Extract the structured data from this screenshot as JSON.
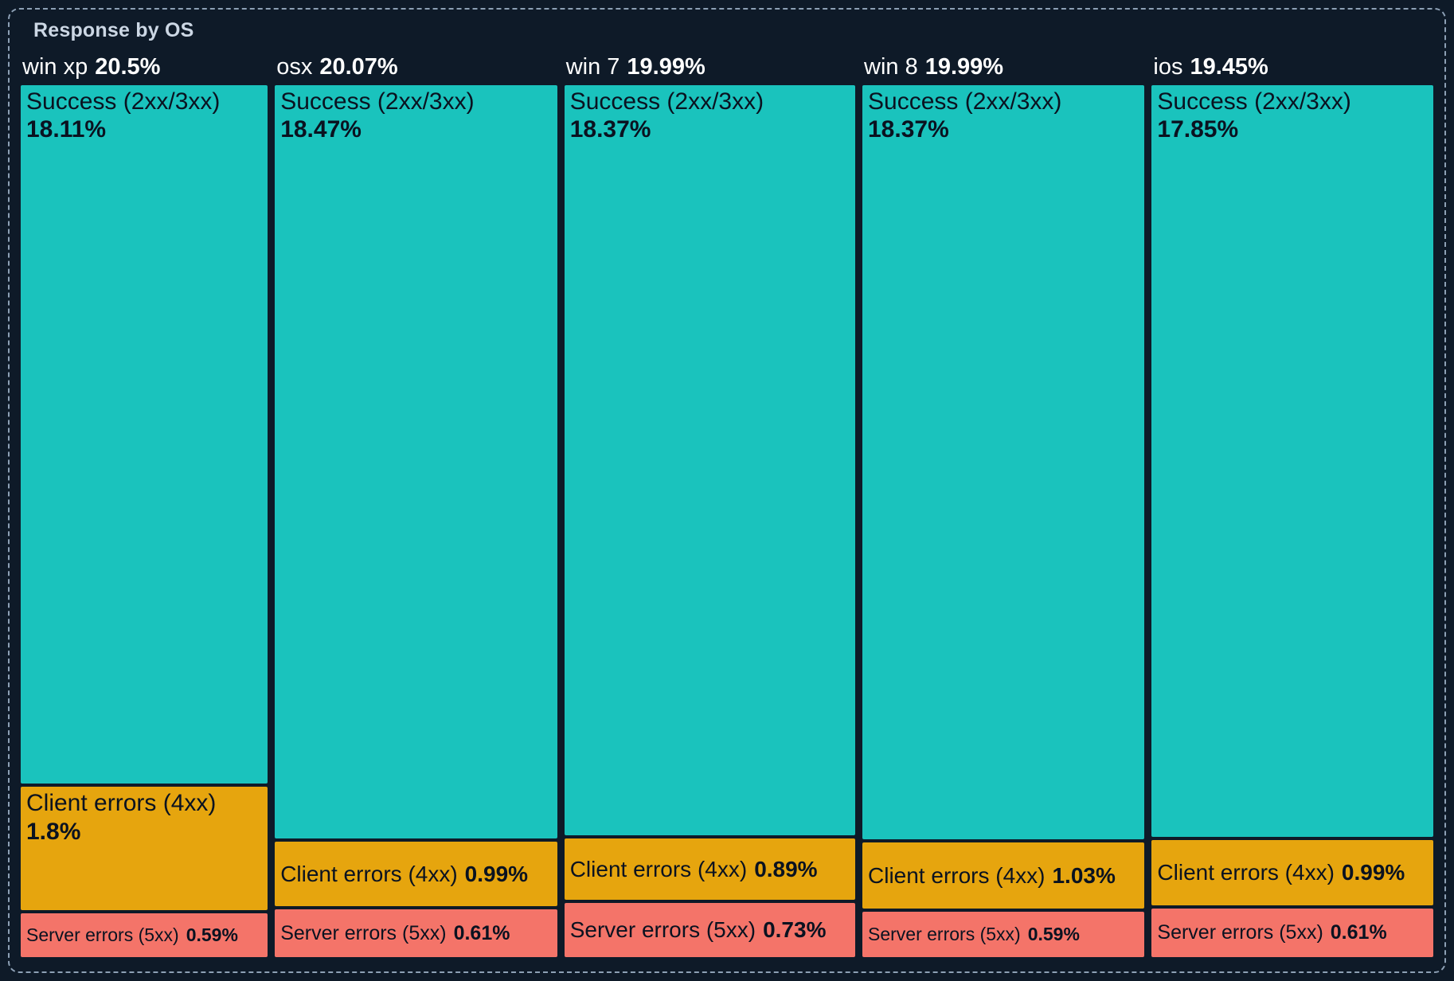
{
  "panel": {
    "title": "Response by OS"
  },
  "colors": {
    "panel-border": "#8da0b5",
    "title": "#ccd7e4",
    "header-text": "#ffffff",
    "segment-text": "#0a1220",
    "success": "#1ac3bd",
    "client": "#e6a50e",
    "server": "#f47469"
  },
  "chart_data": {
    "type": "marimekko",
    "title": "Response by OS",
    "orientation": "columns share full height; column width proportional to OS total",
    "legend": "none (labels drawn inside segments)",
    "columns": [
      {
        "os": "win xp",
        "total": 20.5,
        "total_label": "20.5%",
        "segments": [
          {
            "name": "Success (2xx/3xx)",
            "value": 18.11,
            "label": "18.11%"
          },
          {
            "name": "Client errors (4xx)",
            "value": 1.8,
            "label": "1.8%"
          },
          {
            "name": "Server errors (5xx)",
            "value": 0.59,
            "label": "0.59%"
          }
        ]
      },
      {
        "os": "osx",
        "total": 20.07,
        "total_label": "20.07%",
        "segments": [
          {
            "name": "Success (2xx/3xx)",
            "value": 18.47,
            "label": "18.47%"
          },
          {
            "name": "Client errors (4xx)",
            "value": 0.99,
            "label": "0.99%"
          },
          {
            "name": "Server errors (5xx)",
            "value": 0.61,
            "label": "0.61%"
          }
        ]
      },
      {
        "os": "win 7",
        "total": 19.99,
        "total_label": "19.99%",
        "segments": [
          {
            "name": "Success (2xx/3xx)",
            "value": 18.37,
            "label": "18.37%"
          },
          {
            "name": "Client errors (4xx)",
            "value": 0.89,
            "label": "0.89%"
          },
          {
            "name": "Server errors (5xx)",
            "value": 0.73,
            "label": "0.73%"
          }
        ]
      },
      {
        "os": "win 8",
        "total": 19.99,
        "total_label": "19.99%",
        "segments": [
          {
            "name": "Success (2xx/3xx)",
            "value": 18.37,
            "label": "18.37%"
          },
          {
            "name": "Client errors (4xx)",
            "value": 1.03,
            "label": "1.03%"
          },
          {
            "name": "Server errors (5xx)",
            "value": 0.59,
            "label": "0.59%"
          }
        ]
      },
      {
        "os": "ios",
        "total": 19.45,
        "total_label": "19.45%",
        "segments": [
          {
            "name": "Success (2xx/3xx)",
            "value": 17.85,
            "label": "17.85%"
          },
          {
            "name": "Client errors (4xx)",
            "value": 0.99,
            "label": "0.99%"
          },
          {
            "name": "Server errors (5xx)",
            "value": 0.61,
            "label": "0.61%"
          }
        ]
      }
    ]
  }
}
